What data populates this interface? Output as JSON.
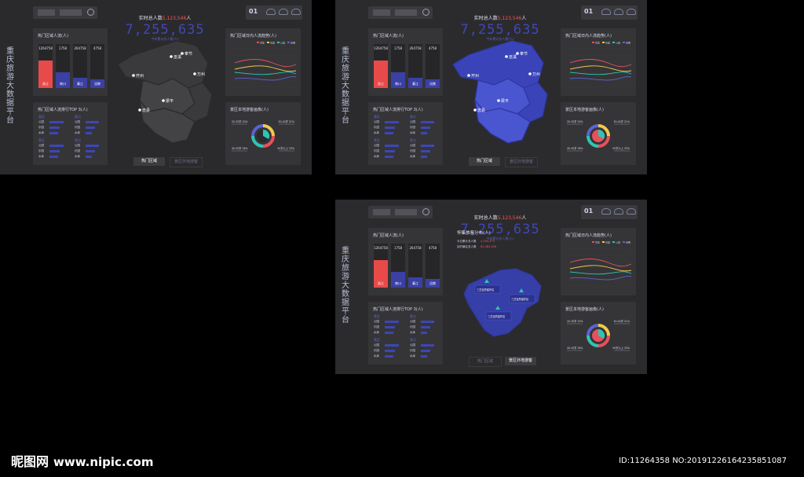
{
  "app": {
    "vertical_title": "重庆旅游大数据平台"
  },
  "header": {
    "realtime_label_prefix": "实时总人数",
    "realtime_label_value": "5,123,546",
    "realtime_label_suffix": "人",
    "total": "7,255,635",
    "total_sub": "今年累计总人数(人)",
    "date_day": "01",
    "weather_icons": [
      "cloud-icon",
      "cloud-icon",
      "cloud-icon"
    ]
  },
  "cards": {
    "hot_area_title": "热门区域人流(人)",
    "ranking_title": "热门区域人流排行TOP 3(人)",
    "trend_title": "热门区域日内人流趋势(人)",
    "portrait_title": "景区本地游客画像(人)"
  },
  "bars": [
    {
      "value": "1264758",
      "label": "浙江",
      "level": 0.62,
      "color": "#e84a4a"
    },
    {
      "value": "1758",
      "label": "南川",
      "level": 0.36,
      "color": "#3b40a5"
    },
    {
      "value": "264758",
      "label": "綦江",
      "level": 0.24,
      "color": "#3b40a5"
    },
    {
      "value": "4758",
      "label": "涪陵",
      "level": 0.2,
      "color": "#3b40a5"
    }
  ],
  "ranking": {
    "categories": [
      "景区",
      "景点",
      "景区",
      "景点"
    ],
    "rows": [
      {
        "name": "公园",
        "level": 0.75
      },
      {
        "name": "乐园",
        "level": 0.55
      },
      {
        "name": "水库",
        "level": 0.45
      },
      {
        "name": "公园",
        "level": 0.7
      },
      {
        "name": "乐园",
        "level": 0.5
      },
      {
        "name": "水库",
        "level": 0.35
      }
    ]
  },
  "map": {
    "pins": [
      "巫溪",
      "奉节",
      "开州",
      "万州",
      "忠县",
      "梁平"
    ],
    "detail_title": "怀集旅客分布(人)",
    "today_label": "今日累计总人数",
    "today_value": "4,345,373",
    "realtime_label": "实时景区总人数",
    "realtime_value": "65,484,456",
    "scenic_labels": [
      "三岔自然保护区",
      "三岔自然保护区",
      "三岔自然保护区"
    ]
  },
  "tabs": {
    "hot": "热门区域",
    "local": "景区外地游客"
  },
  "trend": {
    "legend": [
      "景区",
      "乐园",
      "公园",
      "商圈"
    ],
    "colors": [
      "#e8505b",
      "#f2c94c",
      "#2fc4b2",
      "#5b63d3"
    ]
  },
  "portrait": {
    "labels": [
      "20-30岁 20%",
      "30-40岁 21%",
      "40-50岁 26%",
      "50岁以上 33%"
    ],
    "colors": [
      "#f2c94c",
      "#e8505b",
      "#2fc4b2",
      "#5b63d3"
    ]
  },
  "watermark": {
    "logo": "昵图网",
    "url": "www.nipic.com",
    "id": "ID:11264358 NO:20191226164235851087"
  }
}
